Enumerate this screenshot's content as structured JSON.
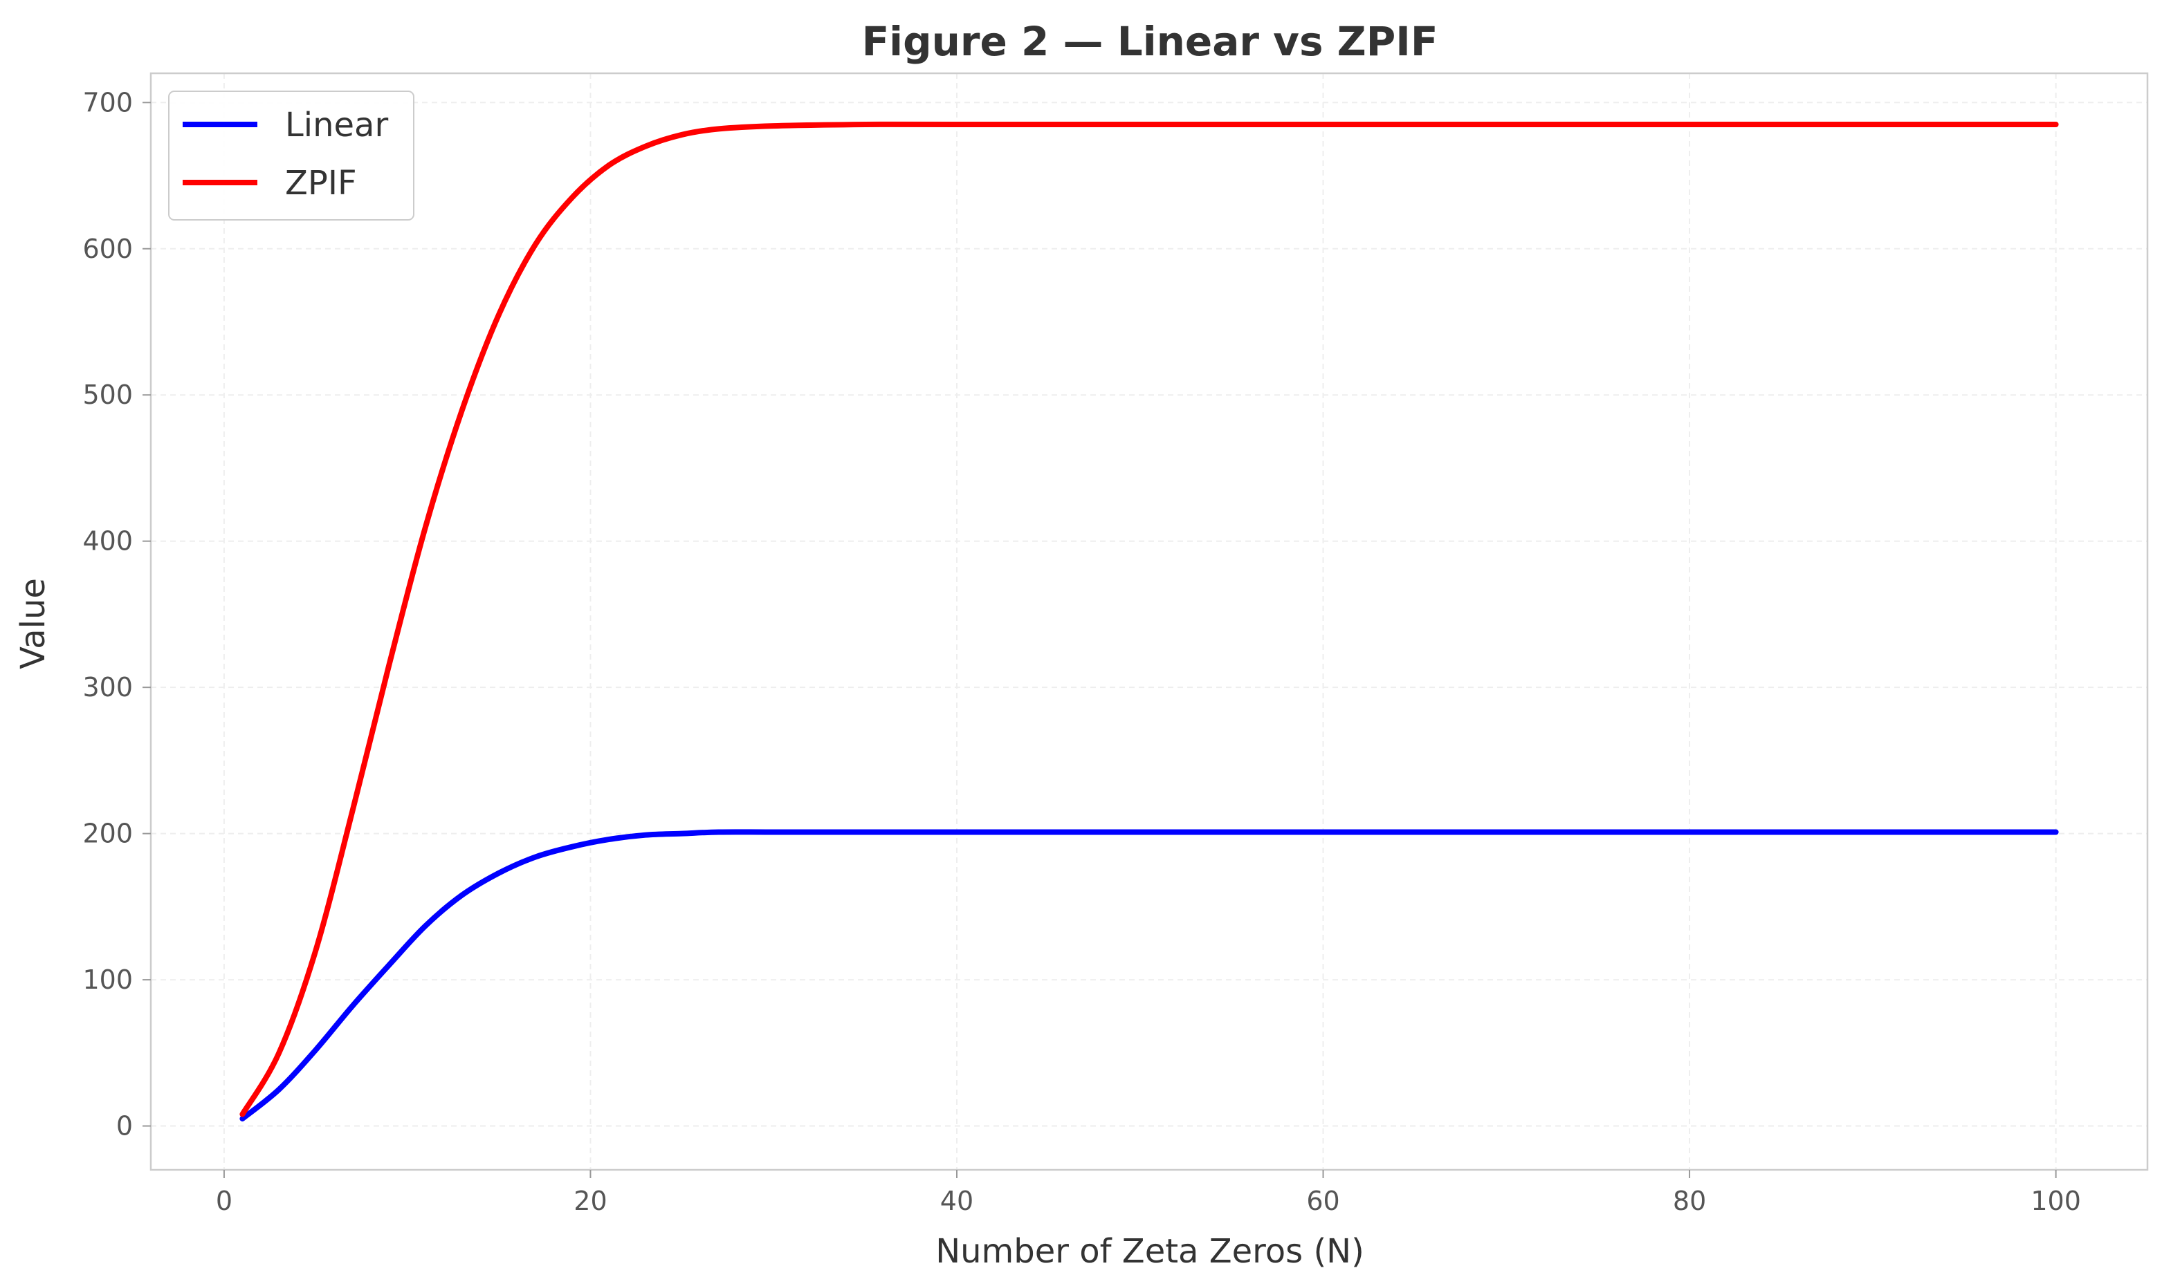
{
  "chart_data": {
    "type": "line",
    "title": "Figure 2 — Linear vs ZPIF",
    "xlabel": "Number of Zeta Zeros (N)",
    "ylabel": "Value",
    "xlim": [
      -4,
      105
    ],
    "ylim": [
      -30,
      720
    ],
    "xticks": [
      0,
      20,
      40,
      60,
      80,
      100
    ],
    "yticks": [
      0,
      100,
      200,
      300,
      400,
      500,
      600,
      700
    ],
    "grid": true,
    "legend_position": "top-left",
    "x": [
      1,
      3,
      5,
      7,
      9,
      11,
      13,
      15,
      17,
      19,
      21,
      23,
      25,
      27,
      30,
      35,
      40,
      50,
      60,
      70,
      80,
      90,
      100
    ],
    "series": [
      {
        "name": "Linear",
        "color": "#0000ff",
        "values": [
          5,
          25,
          52,
          82,
          110,
          137,
          158,
          173,
          184,
          191,
          196,
          199,
          200,
          201,
          201,
          201,
          201,
          201,
          201,
          201,
          201,
          201,
          201
        ]
      },
      {
        "name": "ZPIF",
        "color": "#ff0000",
        "values": [
          8,
          50,
          120,
          215,
          315,
          410,
          490,
          555,
          603,
          635,
          657,
          670,
          678,
          682,
          684,
          685,
          685,
          685,
          685,
          685,
          685,
          685,
          685
        ]
      }
    ]
  }
}
